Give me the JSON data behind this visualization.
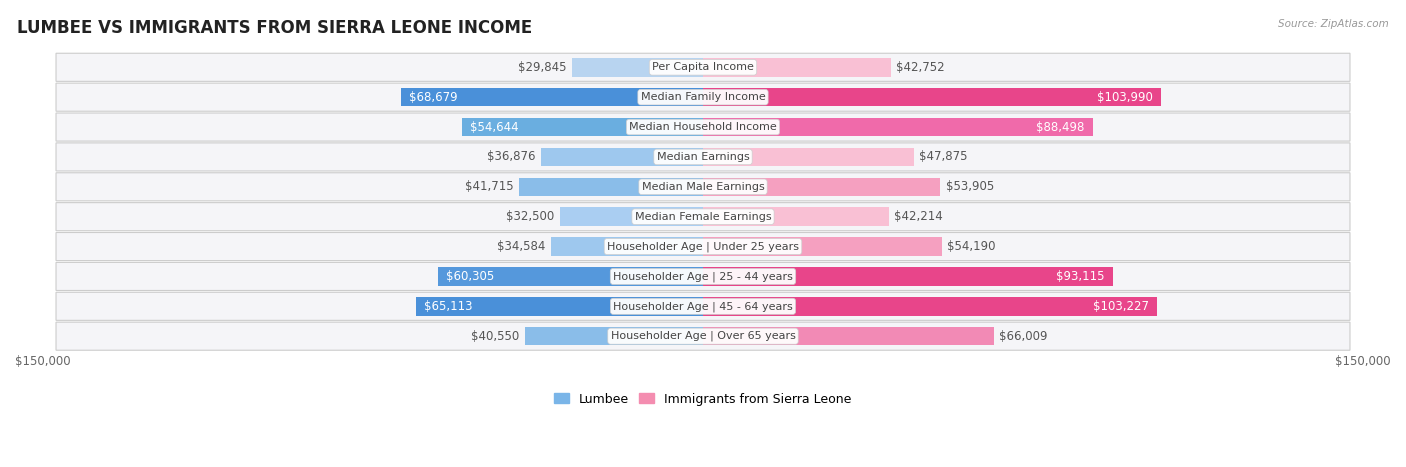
{
  "title": "LUMBEE VS IMMIGRANTS FROM SIERRA LEONE INCOME",
  "source": "Source: ZipAtlas.com",
  "categories": [
    "Per Capita Income",
    "Median Family Income",
    "Median Household Income",
    "Median Earnings",
    "Median Male Earnings",
    "Median Female Earnings",
    "Householder Age | Under 25 years",
    "Householder Age | 25 - 44 years",
    "Householder Age | 45 - 64 years",
    "Householder Age | Over 65 years"
  ],
  "lumbee_values": [
    29845,
    68679,
    54644,
    36876,
    41715,
    32500,
    34584,
    60305,
    65113,
    40550
  ],
  "sierra_leone_values": [
    42752,
    103990,
    88498,
    47875,
    53905,
    42214,
    54190,
    93115,
    103227,
    66009
  ],
  "lumbee_labels": [
    "$29,845",
    "$68,679",
    "$54,644",
    "$36,876",
    "$41,715",
    "$32,500",
    "$34,584",
    "$60,305",
    "$65,113",
    "$40,550"
  ],
  "sierra_leone_labels": [
    "$42,752",
    "$103,990",
    "$88,498",
    "$47,875",
    "$53,905",
    "$42,214",
    "$54,190",
    "$93,115",
    "$103,227",
    "$66,009"
  ],
  "lumbee_colors": [
    "#b8d4f0",
    "#4a90d9",
    "#6aaee0",
    "#9ec8ee",
    "#8abde9",
    "#aacef2",
    "#9ec8ee",
    "#5598dc",
    "#4a90d9",
    "#8abde9"
  ],
  "sierra_leone_colors": [
    "#f9c0d4",
    "#e8458a",
    "#f06aaa",
    "#f9c0d4",
    "#f5a0c0",
    "#f9c0d4",
    "#f5a0c0",
    "#e8458a",
    "#e8458a",
    "#f28ab5"
  ],
  "max_value": 150000,
  "lumbee_color_base": "#7ab5e8",
  "sierra_leone_color_base": "#f48db0",
  "bg_color": "#ffffff",
  "row_bg": "#f0f0f5",
  "label_fontsize": 8.5,
  "title_fontsize": 12,
  "category_fontsize": 8,
  "bar_height": 0.62,
  "legend_lumbee": "Lumbee",
  "legend_sierra_leone": "Immigrants from Sierra Leone",
  "white_label_threshold_lumbee": 50000,
  "white_label_threshold_sl": 70000
}
